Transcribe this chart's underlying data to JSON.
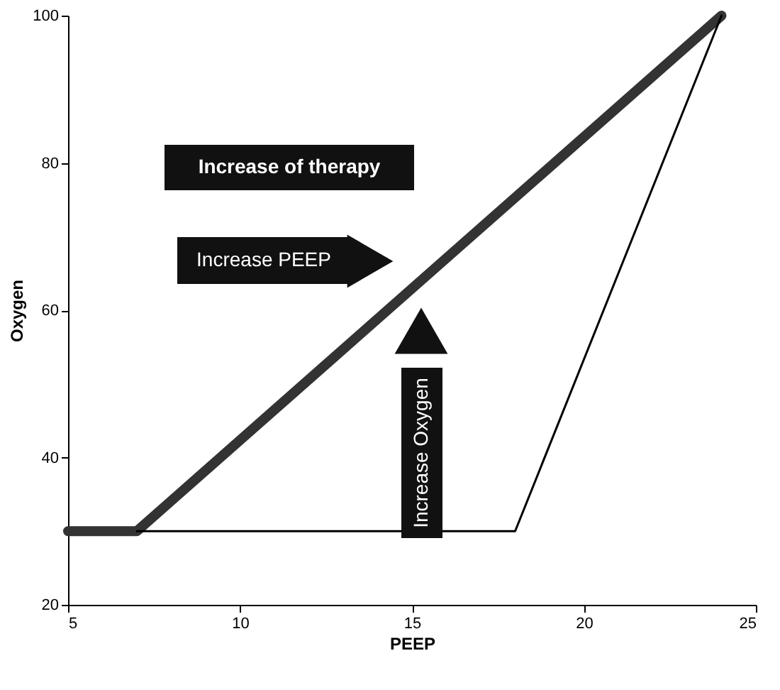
{
  "chart_data": {
    "type": "line",
    "xlabel": "PEEP",
    "ylabel": "Oxygen",
    "series": [
      {
        "color": "#333333",
        "x": [
          5,
          7,
          24
        ],
        "values": [
          30,
          30,
          100
        ]
      },
      {
        "color": "#000000",
        "x": [
          7,
          18,
          24
        ],
        "values": [
          30,
          30,
          100
        ]
      }
    ],
    "xlim": [
      5,
      25
    ],
    "xticks": [
      5,
      10,
      15,
      20,
      25
    ],
    "ylim": [
      20,
      100
    ],
    "yticks": [
      20,
      40,
      60,
      80,
      100
    ],
    "grid": false,
    "marker": "none",
    "line_style": "solid",
    "annotations": [
      "Increase of therapy",
      "Increase PEEP",
      "Increase Oxygen"
    ]
  }
}
